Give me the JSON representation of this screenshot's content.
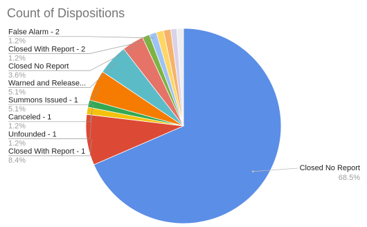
{
  "chart_data": {
    "type": "pie",
    "title": "Count of Dispositions",
    "categories": [
      "Closed No Report",
      "Closed With Report - 1",
      "Unfounded - 1",
      "Canceled - 1",
      "Summons Issued - 1",
      "Warned and Release...",
      "Closed No Report",
      "Closed With Report - 2",
      "False Alarm - 2",
      null,
      null,
      null,
      null
    ],
    "values": [
      68.5,
      8.4,
      1.2,
      1.2,
      5.1,
      5.1,
      3.6,
      1.2,
      1.2,
      1.2,
      1.2,
      1.0,
      1.1
    ],
    "value_labels": [
      "68.5%",
      "8.4%",
      "1.2%",
      "1.2%",
      "5.1%",
      "5.1%",
      "3.6%",
      "1.2%",
      "1.2%",
      null,
      null,
      null,
      null
    ],
    "colors": [
      "#5b8ee6",
      "#dc4a35",
      "#f4c20d",
      "#34a853",
      "#f57c00",
      "#5bbcc8",
      "#e57368",
      "#7cb342",
      "#9fc2f5",
      "#fdd663",
      "#f6b26b",
      "#d9d2e9",
      "#eeeeee"
    ]
  }
}
